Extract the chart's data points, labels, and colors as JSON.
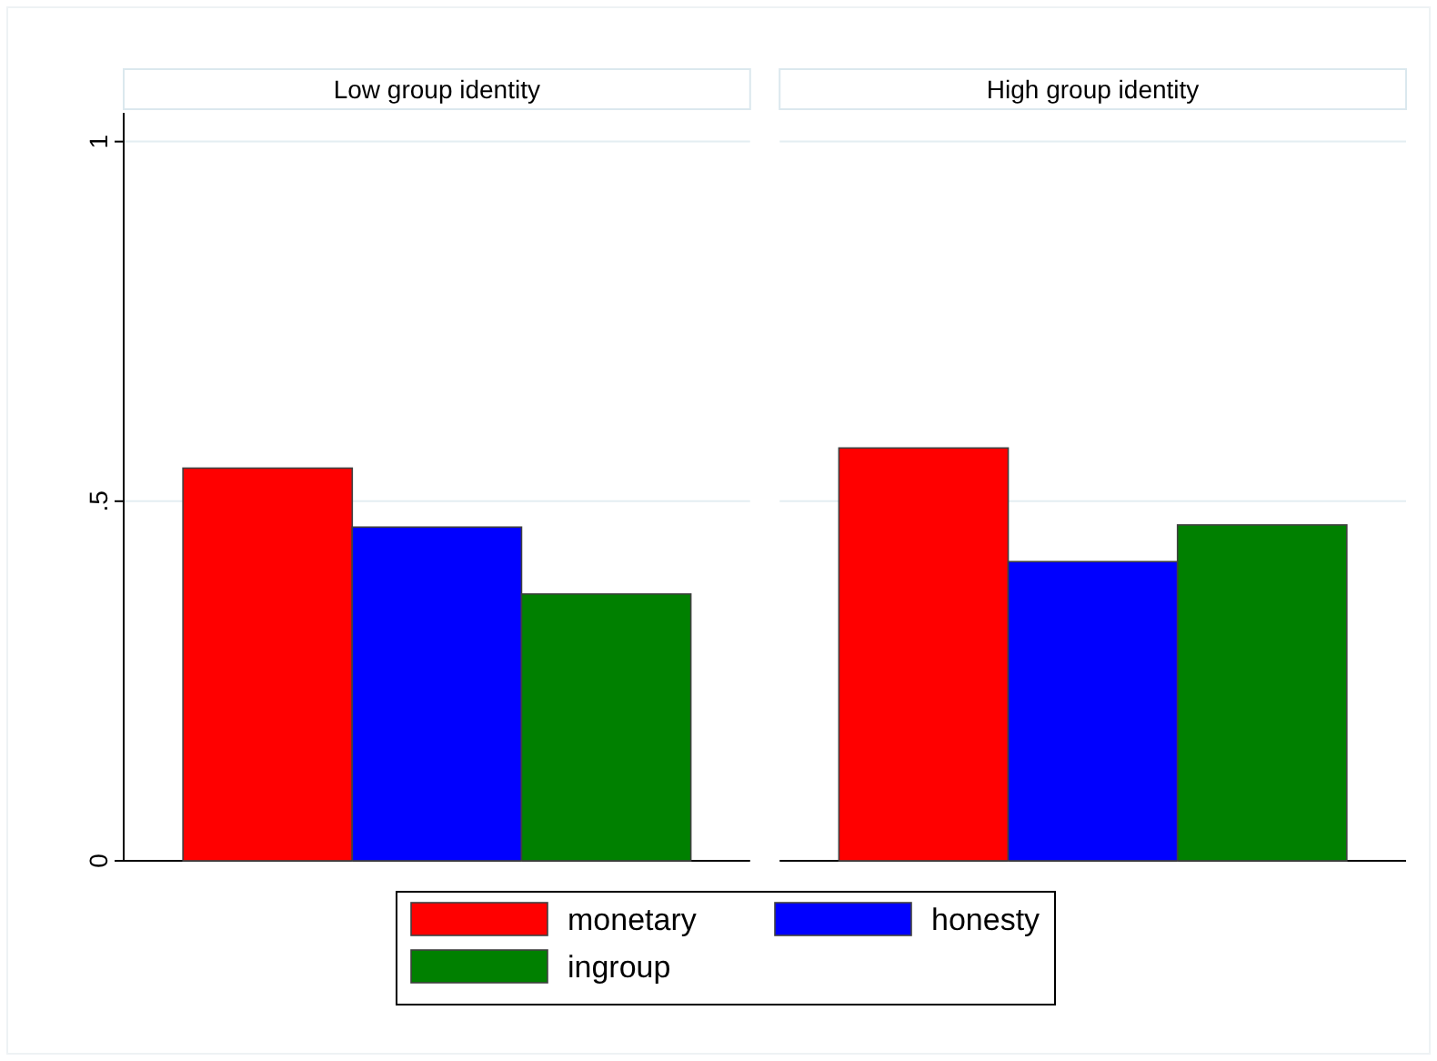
{
  "chart_data": {
    "type": "bar",
    "categories": [
      "Low group identity",
      "High group identity"
    ],
    "series": [
      {
        "name": "monetary",
        "color": "#ff0000",
        "values": [
          0.546,
          0.574
        ]
      },
      {
        "name": "honesty",
        "color": "#0000ff",
        "values": [
          0.464,
          0.416
        ]
      },
      {
        "name": "ingroup",
        "color": "#008000",
        "values": [
          0.371,
          0.467
        ]
      }
    ],
    "ylim": [
      0,
      1.04
    ],
    "yticks": [
      0,
      {
        "value": 0.5,
        "label": ".5"
      },
      1
    ],
    "grid": "y",
    "legend": "bottom"
  }
}
